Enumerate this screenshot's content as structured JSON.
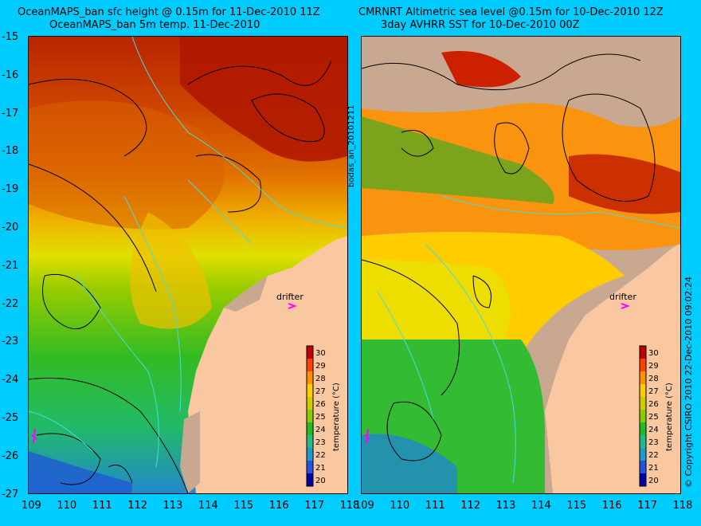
{
  "left_panel": {
    "title_line1": "OceanMAPS_ban sfc height @ 0.15m for 11-Dec-2010 11Z",
    "title_line2": "OceanMAPS_ban 5m temp. 11-Dec-2010",
    "drifter_label": "drifter",
    "colorbar": {
      "label": "temperature (°C)",
      "ticks": [
        "30",
        "29",
        "28",
        "27",
        "26",
        "25",
        "24",
        "23",
        "22",
        "21",
        "20"
      ]
    }
  },
  "right_panel": {
    "title_line1": "CMRNRT Altimetric sea level  @0.15m  for 10-Dec-2010 12Z",
    "title_line2": "3day AVHRR SST for 10-Dec-2010 00Z",
    "drifter_label": "drifter",
    "side_label": "bodas_an_20101211",
    "colorbar": {
      "label": "temperature (°C)",
      "ticks": [
        "30",
        "29",
        "28",
        "27",
        "26",
        "25",
        "24",
        "23",
        "22",
        "21",
        "20"
      ]
    }
  },
  "y_axis": {
    "ticks": [
      "-15",
      "-16",
      "-17",
      "-18",
      "-19",
      "-20",
      "-21",
      "-22",
      "-23",
      "-24",
      "-25",
      "-26",
      "-27"
    ]
  },
  "x_axis": {
    "ticks": [
      "109",
      "110",
      "111",
      "112",
      "113",
      "114",
      "115",
      "116",
      "117",
      "118"
    ]
  },
  "copyright": "© Copyright CSIRO 2010   22-Dec-2010 09:02:24",
  "colors": {
    "background": "#00ccff",
    "land": "#f9c8a0",
    "drifter": "#ff00ff",
    "coast_contour": "#44dddd",
    "no_data": "#c8a890"
  },
  "colorbar_scale": [
    "#c00000",
    "#ff4000",
    "#ff9000",
    "#ffcc00",
    "#cccc00",
    "#88cc00",
    "#22bb22",
    "#22bb88",
    "#2299cc",
    "#2255dd",
    "#0000aa"
  ]
}
